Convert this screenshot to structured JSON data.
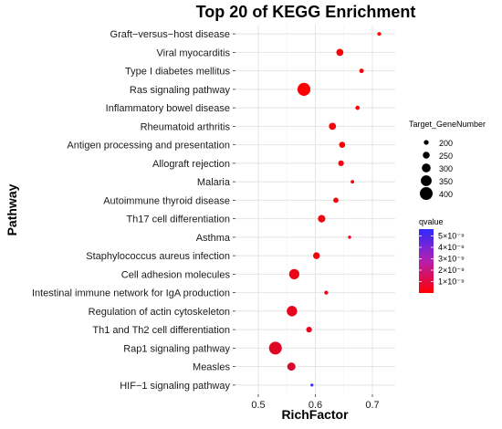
{
  "chart_data": {
    "type": "scatter",
    "title": "Top 20 of KEGG Enrichment",
    "xlabel": "RichFactor",
    "ylabel": "Pathway",
    "xlim": [
      0.46,
      0.74
    ],
    "x_ticks": [
      0.5,
      0.6,
      0.7
    ],
    "x_tick_labels": [
      "0.5",
      "0.6",
      "0.7"
    ],
    "grid": true,
    "legend_position": "right",
    "size_legend": {
      "title": "Target_GeneNumber",
      "values": [
        200,
        250,
        300,
        350,
        400
      ],
      "labels": [
        "200",
        "250",
        "300",
        "350",
        "400"
      ],
      "min": 150,
      "max": 410
    },
    "color_legend": {
      "title": "qvalue",
      "values": [
        1e-09,
        2e-09,
        3e-09,
        4e-09,
        5e-09
      ],
      "labels": [
        "1×10⁻⁹",
        "2×10⁻⁹",
        "3×10⁻⁹",
        "4×10⁻⁹",
        "5×10⁻⁹"
      ],
      "min": 0,
      "max": 5.6e-09,
      "low_color": "#ff0000",
      "high_color": "#2f2bff"
    },
    "points": [
      {
        "pathway": "Graft−versus−host disease",
        "richfactor": 0.712,
        "genes": 170,
        "qvalue": 2e-10
      },
      {
        "pathway": "Viral myocarditis",
        "richfactor": 0.643,
        "genes": 255,
        "qvalue": 2e-10
      },
      {
        "pathway": "Type I diabetes mellitus",
        "richfactor": 0.681,
        "genes": 190,
        "qvalue": 2e-10
      },
      {
        "pathway": "Ras signaling pathway",
        "richfactor": 0.58,
        "genes": 405,
        "qvalue": 1e-10
      },
      {
        "pathway": "Inflammatory bowel disease",
        "richfactor": 0.674,
        "genes": 185,
        "qvalue": 2e-10
      },
      {
        "pathway": "Rheumatoid arthritis",
        "richfactor": 0.63,
        "genes": 255,
        "qvalue": 2e-10
      },
      {
        "pathway": "Antigen processing and presentation",
        "richfactor": 0.647,
        "genes": 230,
        "qvalue": 2e-10
      },
      {
        "pathway": "Allograft rejection",
        "richfactor": 0.645,
        "genes": 220,
        "qvalue": 2e-10
      },
      {
        "pathway": "Malaria",
        "richfactor": 0.665,
        "genes": 165,
        "qvalue": 3e-10
      },
      {
        "pathway": "Autoimmune thyroid disease",
        "richfactor": 0.636,
        "genes": 210,
        "qvalue": 3e-10
      },
      {
        "pathway": "Th17 cell differentiation",
        "richfactor": 0.611,
        "genes": 265,
        "qvalue": 3e-10
      },
      {
        "pathway": "Asthma",
        "richfactor": 0.66,
        "genes": 155,
        "qvalue": 4e-10
      },
      {
        "pathway": "Staphylococcus aureus infection",
        "richfactor": 0.602,
        "genes": 250,
        "qvalue": 4e-10
      },
      {
        "pathway": "Cell adhesion molecules",
        "richfactor": 0.563,
        "genes": 335,
        "qvalue": 5e-10
      },
      {
        "pathway": "Intestinal immune network for IgA production",
        "richfactor": 0.619,
        "genes": 175,
        "qvalue": 6e-10
      },
      {
        "pathway": "Regulation of actin cytoskeleton",
        "richfactor": 0.559,
        "genes": 340,
        "qvalue": 6e-10
      },
      {
        "pathway": "Th1 and Th2 cell differentiation",
        "richfactor": 0.589,
        "genes": 220,
        "qvalue": 7e-10
      },
      {
        "pathway": "Rap1 signaling pathway",
        "richfactor": 0.53,
        "genes": 400,
        "qvalue": 8e-10
      },
      {
        "pathway": "Measles",
        "richfactor": 0.558,
        "genes": 285,
        "qvalue": 1e-09
      },
      {
        "pathway": "HIF−1 signaling pathway",
        "richfactor": 0.594,
        "genes": 150,
        "qvalue": 5.5e-09
      }
    ]
  }
}
